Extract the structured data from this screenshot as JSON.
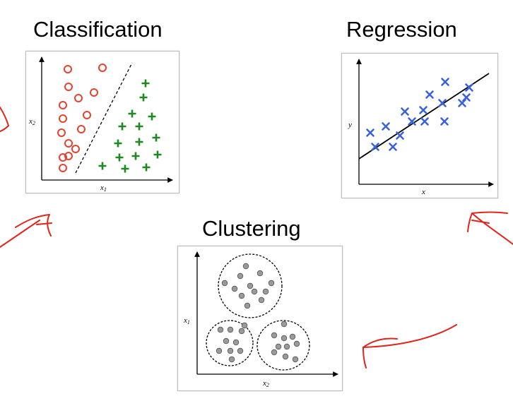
{
  "colors": {
    "classA": "#e8412f",
    "classB": "#1f8a1f",
    "regression_points": "#3a63d6",
    "cluster_points": "#9a9a9a",
    "annotation_ink": "#e0251c"
  },
  "panels": {
    "classification": {
      "title": "Classification",
      "xlabel": "x",
      "xlabel_sub": "1",
      "ylabel": "x",
      "ylabel_sub": "2"
    },
    "regression": {
      "title": "Regression",
      "xlabel": "x",
      "ylabel": "y"
    },
    "clustering": {
      "title": "Clustering",
      "xlabel": "x",
      "xlabel_sub": "2",
      "ylabel": "x",
      "ylabel_sub": "1"
    }
  }
}
